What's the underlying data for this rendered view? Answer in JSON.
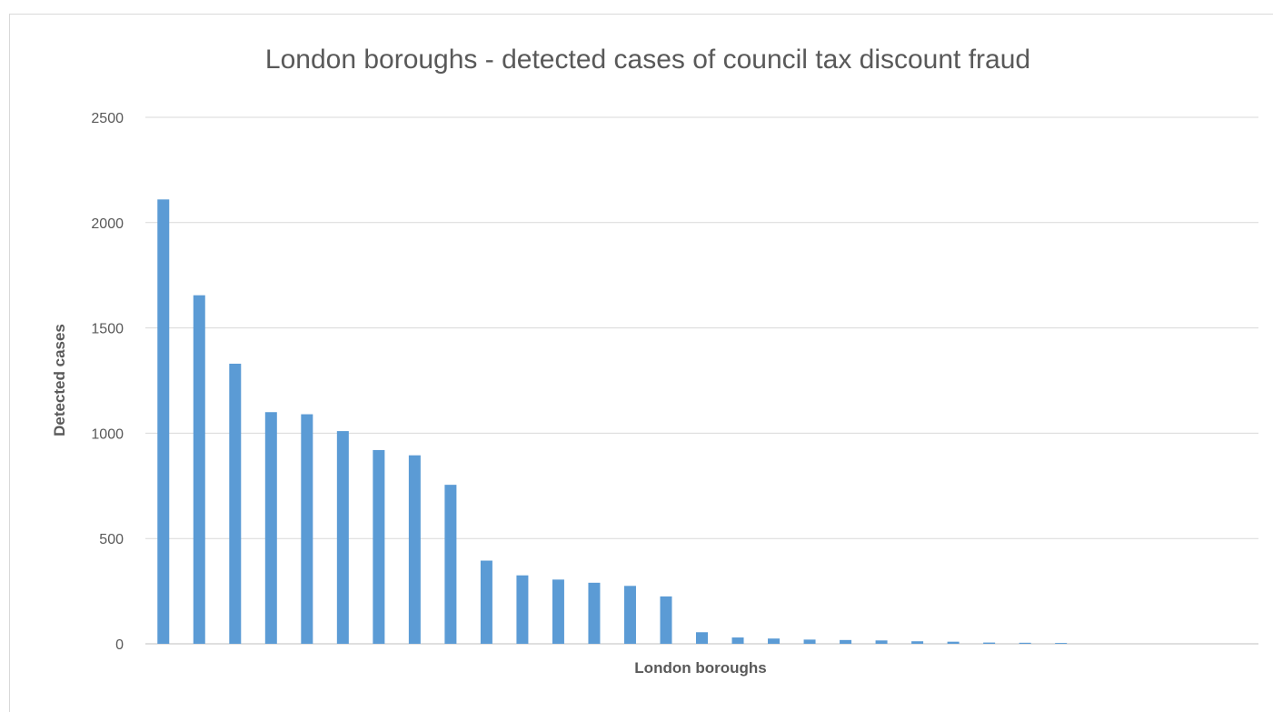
{
  "chart_data": {
    "type": "bar",
    "title": "London boroughs - detected cases of council tax discount fraud",
    "xlabel": "London boroughs",
    "ylabel": "Detected cases",
    "ylim": [
      0,
      2500
    ],
    "yticks": [
      "0",
      "500",
      "1000",
      "1500",
      "2000",
      "2500"
    ],
    "grid": true,
    "bar_color": "#5b9bd5",
    "values": [
      2110,
      1655,
      1330,
      1100,
      1090,
      1010,
      920,
      895,
      755,
      395,
      325,
      305,
      290,
      275,
      225,
      55,
      30,
      25,
      20,
      18,
      16,
      12,
      10,
      6,
      5,
      4,
      0,
      0,
      0,
      0,
      0
    ]
  }
}
